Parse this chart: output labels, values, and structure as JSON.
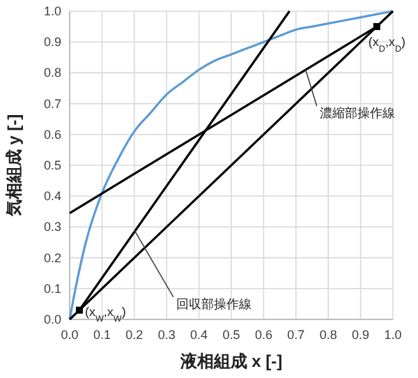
{
  "chart_data": {
    "type": "line",
    "xlabel": "液相組成 x [-]",
    "ylabel": "気相組成 y [-]",
    "xlim": [
      0,
      1
    ],
    "ylim": [
      0,
      1
    ],
    "xticks": [
      {
        "value": 0,
        "label": "0.0"
      },
      {
        "value": 0.1,
        "label": "0.1"
      },
      {
        "value": 0.2,
        "label": "0.2"
      },
      {
        "value": 0.3,
        "label": "0.3"
      },
      {
        "value": 0.4,
        "label": "0.4"
      },
      {
        "value": 0.5,
        "label": "0.5"
      },
      {
        "value": 0.6,
        "label": "0.6"
      },
      {
        "value": 0.7,
        "label": "0.7"
      },
      {
        "value": 0.8,
        "label": "0.8"
      },
      {
        "value": 0.9,
        "label": "0.9"
      },
      {
        "value": 1,
        "label": "1.0"
      }
    ],
    "yticks": [
      {
        "value": 0,
        "label": "0.0"
      },
      {
        "value": 0.1,
        "label": "0.1"
      },
      {
        "value": 0.2,
        "label": "0.2"
      },
      {
        "value": 0.3,
        "label": "0.3"
      },
      {
        "value": 0.4,
        "label": "0.4"
      },
      {
        "value": 0.5,
        "label": "0.5"
      },
      {
        "value": 0.6,
        "label": "0.6"
      },
      {
        "value": 0.7,
        "label": "0.7"
      },
      {
        "value": 0.8,
        "label": "0.8"
      },
      {
        "value": 0.9,
        "label": "0.9"
      },
      {
        "value": 1,
        "label": "1.0"
      }
    ],
    "grid": true,
    "series": [
      {
        "color": "#5b9bd5",
        "x": [
          0,
          0.02,
          0.05,
          0.1,
          0.15,
          0.2,
          0.25,
          0.3,
          0.35,
          0.4,
          0.45,
          0.5,
          0.55,
          0.6,
          0.65,
          0.7,
          0.75,
          0.8,
          0.85,
          0.9,
          0.95,
          1
        ],
        "values": [
          0,
          0.11,
          0.25,
          0.41,
          0.52,
          0.61,
          0.67,
          0.73,
          0.77,
          0.81,
          0.84,
          0.86,
          0.88,
          0.9,
          0.92,
          0.94,
          0.95,
          0.96,
          0.97,
          0.98,
          0.99,
          1
        ]
      },
      {
        "color": "#000000",
        "x": [
          0,
          1
        ],
        "values": [
          0,
          1
        ]
      },
      {
        "color": "#000000",
        "x": [
          0,
          0.95
        ],
        "values": [
          0.345,
          0.95
        ]
      },
      {
        "color": "#000000",
        "x": [
          0.03,
          0.68
        ],
        "values": [
          0.03,
          1
        ]
      },
      {
        "type": "scatter",
        "marker": "square",
        "color": "#000000",
        "x": [
          0.03,
          0.95
        ],
        "values": [
          0.03,
          0.95
        ]
      }
    ],
    "annotations": [
      {
        "text": "(x$_{D}$,x$_{D}$)",
        "x": 0.95,
        "y": 0.95
      },
      {
        "text": "(x$_{W}$,x$_{W}$)",
        "x": 0.03,
        "y": 0.03
      },
      {
        "text": "濃縮部操作線",
        "x": 0.73,
        "y": 0.81
      },
      {
        "text": "回収部操作線",
        "x": 0.2,
        "y": 0.29
      }
    ]
  }
}
